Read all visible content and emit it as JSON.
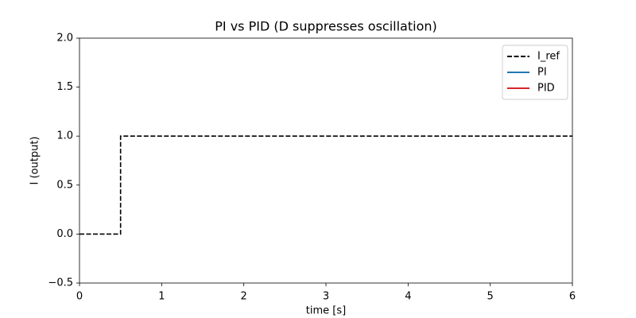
{
  "chart_data": {
    "type": "line",
    "title": "PI vs PID (D suppresses oscillation)",
    "x_label": "time [s]",
    "y_label": "I (output)",
    "x": [
      0,
      0.5,
      0.5,
      6
    ],
    "series": [
      {
        "name": "I_ref",
        "color": "#000000",
        "dash": true,
        "values": [
          0,
          0,
          1,
          1
        ]
      },
      {
        "name": "PI",
        "color": "#1f77b4",
        "dash": false,
        "values": [
          null,
          null,
          null,
          null
        ]
      },
      {
        "name": "PID",
        "color": "#d62728",
        "dash": false,
        "values": [
          null,
          null,
          null,
          null
        ]
      }
    ],
    "xlim": [
      0,
      6
    ],
    "xticks": [
      0,
      1,
      2,
      3,
      4,
      5,
      6
    ],
    "ylim": [
      -0.5,
      2.0
    ],
    "yticks": [
      {
        "value": -0.5,
        "label": "−0.5"
      },
      {
        "value": 0,
        "label": "0.0"
      },
      0.5,
      {
        "value": 1.0,
        "label": "1.0"
      },
      1.5,
      {
        "value": 2.0,
        "label": "2.0"
      }
    ],
    "legend": "upper right",
    "grid": false
  }
}
